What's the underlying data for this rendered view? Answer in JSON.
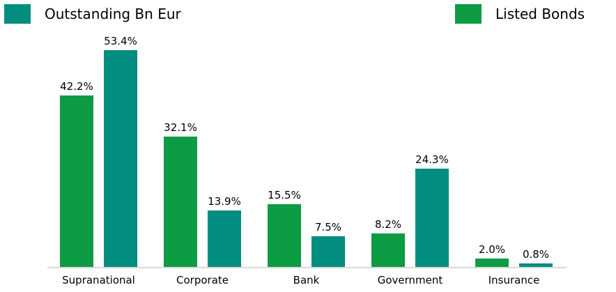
{
  "chart_data": {
    "type": "bar",
    "title": "",
    "unit": "%",
    "categories": [
      "Supranational",
      "Corporate",
      "Bank",
      "Government",
      "Insurance"
    ],
    "series": [
      {
        "name": "Listed Bonds",
        "color": "#0d9b44",
        "values": [
          42.2,
          32.1,
          15.5,
          8.2,
          2.0
        ],
        "labels": [
          "42.2%",
          "32.1%",
          "15.5%",
          "8.2%",
          "2.0%"
        ]
      },
      {
        "name": "Outstanding Bn Eur",
        "color": "#018d80",
        "values": [
          53.4,
          13.9,
          7.5,
          24.3,
          0.8
        ],
        "labels": [
          "53.4%",
          "13.9%",
          "7.5%",
          "24.3%",
          "0.8%"
        ]
      }
    ],
    "ylim": [
      0,
      58
    ],
    "grid": false,
    "legend_position": "top",
    "axis_line_color": "#d9d9d9"
  }
}
